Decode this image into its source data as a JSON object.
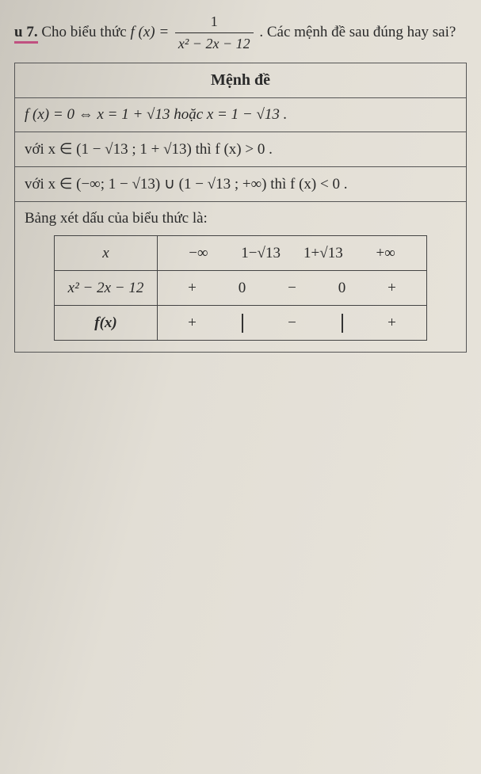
{
  "question": {
    "number": "u 7.",
    "lead": "Cho biểu thức ",
    "fx_eq": "f (x) =",
    "frac_num": "1",
    "frac_den": "x² − 2x − 12",
    "tail": ". Các mệnh đề sau đúng hay sai?"
  },
  "header": "Mệnh đề",
  "rows": {
    "r1": "f (x) = 0 ⇔ x = 1 + √13  hoặc  x = 1 − √13 .",
    "r2": "với  x ∈ (1 − √13 ; 1 + √13)  thì  f (x) > 0 .",
    "r3": "với  x ∈ (−∞; 1 − √13) ∪ (1 − √13 ; +∞)  thì  f (x) < 0 .",
    "r4_lead": "Bảng xét dấu của biểu thức là:"
  },
  "sign_table": {
    "row_x": {
      "label": "x",
      "v1": "−∞",
      "v2": "1−√13",
      "v3": "1+√13",
      "v4": "+∞"
    },
    "row_poly": {
      "label": "x² − 2x − 12",
      "s1": "+",
      "z1": "0",
      "s2": "−",
      "z2": "0",
      "s3": "+"
    },
    "row_fx": {
      "label": "f(x)",
      "s1": "+",
      "s2": "−",
      "s3": "+"
    }
  }
}
